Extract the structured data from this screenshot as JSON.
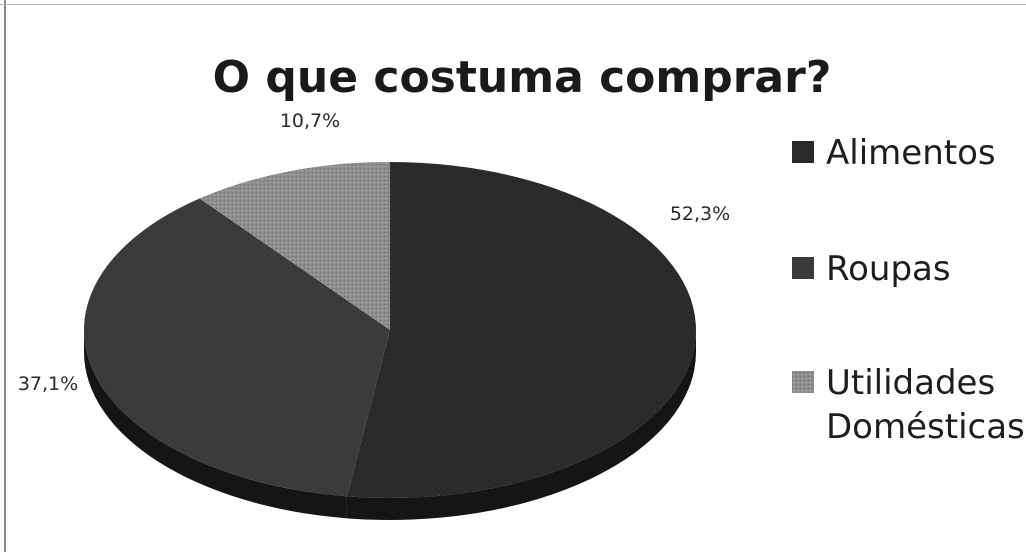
{
  "chart_data": {
    "type": "pie",
    "title": "O que costuma comprar?",
    "slices": [
      {
        "name": "Alimentos",
        "value": 52.3,
        "label": "52,3%",
        "color": "#2a2a2a"
      },
      {
        "name": "Roupas",
        "value": 37.1,
        "label": "37,1%",
        "color": "#3a3a3a"
      },
      {
        "name": "Utilidades Domésticas",
        "value": 10.7,
        "label": "10,7%",
        "color": "#9a9a9a"
      }
    ],
    "legend": {
      "placement": "right",
      "entries": [
        {
          "line1": "Alimentos",
          "line2": ""
        },
        {
          "line1": "Roupas",
          "line2": ""
        },
        {
          "line1": "Utilidades",
          "line2": "Domésticas"
        }
      ]
    },
    "style": "3d-pie",
    "grid": false
  }
}
